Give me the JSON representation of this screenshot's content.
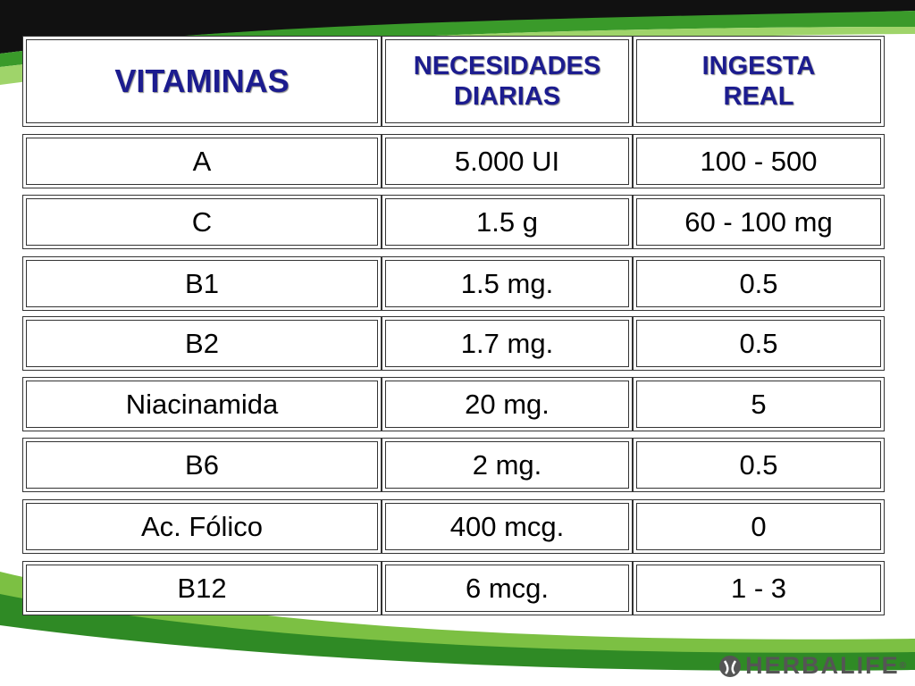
{
  "table": {
    "header": {
      "vitamin": "VITAMINAS",
      "needs": [
        "NECESIDADES",
        "DIARIAS"
      ],
      "intake": [
        "INGESTA",
        "REAL"
      ]
    },
    "rows": [
      [
        "A",
        "5.000 UI",
        "100 - 500"
      ],
      [
        "C",
        "1.5 g",
        "60 - 100 mg"
      ],
      [
        "B1",
        "1.5 mg.",
        "0.5"
      ],
      [
        "B2",
        "1.7 mg.",
        "0.5"
      ],
      [
        "Niacinamida",
        "20 mg.",
        "5"
      ],
      [
        "B6",
        "2 mg.",
        "0.5"
      ],
      [
        "Ac. Fólico",
        "400 mcg.",
        "0"
      ],
      [
        "B12",
        "6 mcg.",
        "1 - 3"
      ]
    ]
  },
  "logo": {
    "text": "HERBALIFE",
    "mark": "®"
  }
}
